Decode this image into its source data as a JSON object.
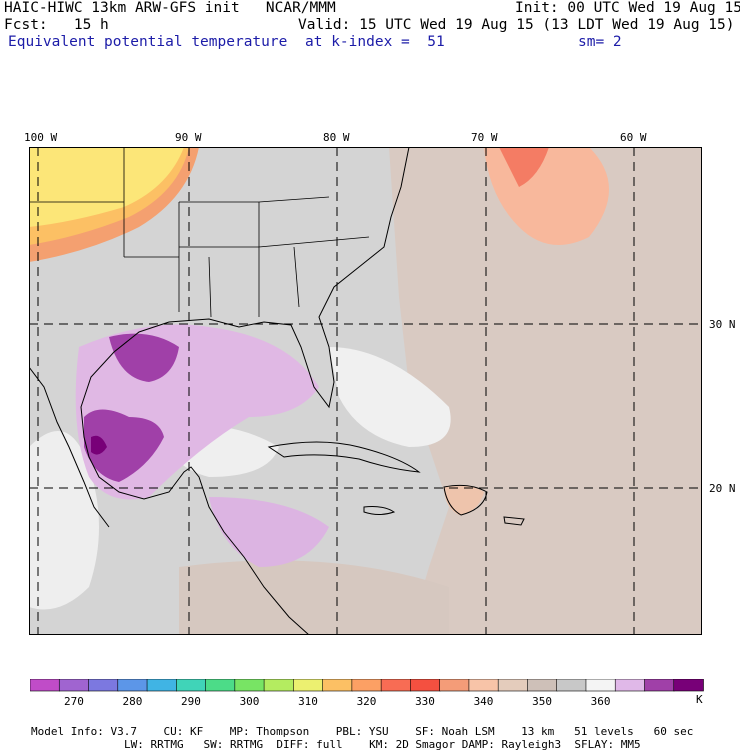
{
  "header": {
    "line1_left": "HAIC-HIWC 13km ARW-GFS init   NCAR/MMM",
    "line1_right": "Init: 00 UTC Wed 19 Aug 15",
    "line2_left": "Fcst:   15 h",
    "line2_right": "Valid: 15 UTC Wed 19 Aug 15 (13 LDT Wed 19 Aug 15)",
    "field_name": "Equivalent potential temperature",
    "level": "at k-index =  51",
    "smoothing": "sm= 2"
  },
  "map": {
    "longitude_labels": [
      "100 W",
      "90 W",
      "80 W",
      "70 W",
      "60 W"
    ],
    "latitude_labels": [
      "30 N",
      "20 N"
    ]
  },
  "colorbar": {
    "colors": [
      "#c04cc8",
      "#a064d0",
      "#7c78e0",
      "#5c96e8",
      "#40b4e4",
      "#40d4b8",
      "#4cdc88",
      "#78e464",
      "#b4ec60",
      "#ecf070",
      "#fcc064",
      "#fca064",
      "#f86c54",
      "#f45040",
      "#f49c78",
      "#f8c4a8",
      "#e4ccbc",
      "#cec0b8",
      "#c8c8c8",
      "#f4f4f4",
      "#e0b8e8",
      "#a040a8",
      "#780078"
    ],
    "tick_labels": [
      "270",
      "280",
      "290",
      "300",
      "310",
      "320",
      "330",
      "340",
      "350",
      "360"
    ],
    "unit": "K"
  },
  "footer": {
    "line1": [
      "Model Info: V3.7",
      "CU: KF",
      "MP: Thompson",
      "PBL: YSU",
      "SF: Noah LSM",
      "13 km",
      "51 levels",
      "60 sec"
    ],
    "line2": [
      "LW: RRTMG",
      "SW: RRTMG",
      "DIFF: full",
      "KM: 2D Smagor",
      "DAMP: Rayleigh3",
      "SFLAY: MM5"
    ]
  }
}
